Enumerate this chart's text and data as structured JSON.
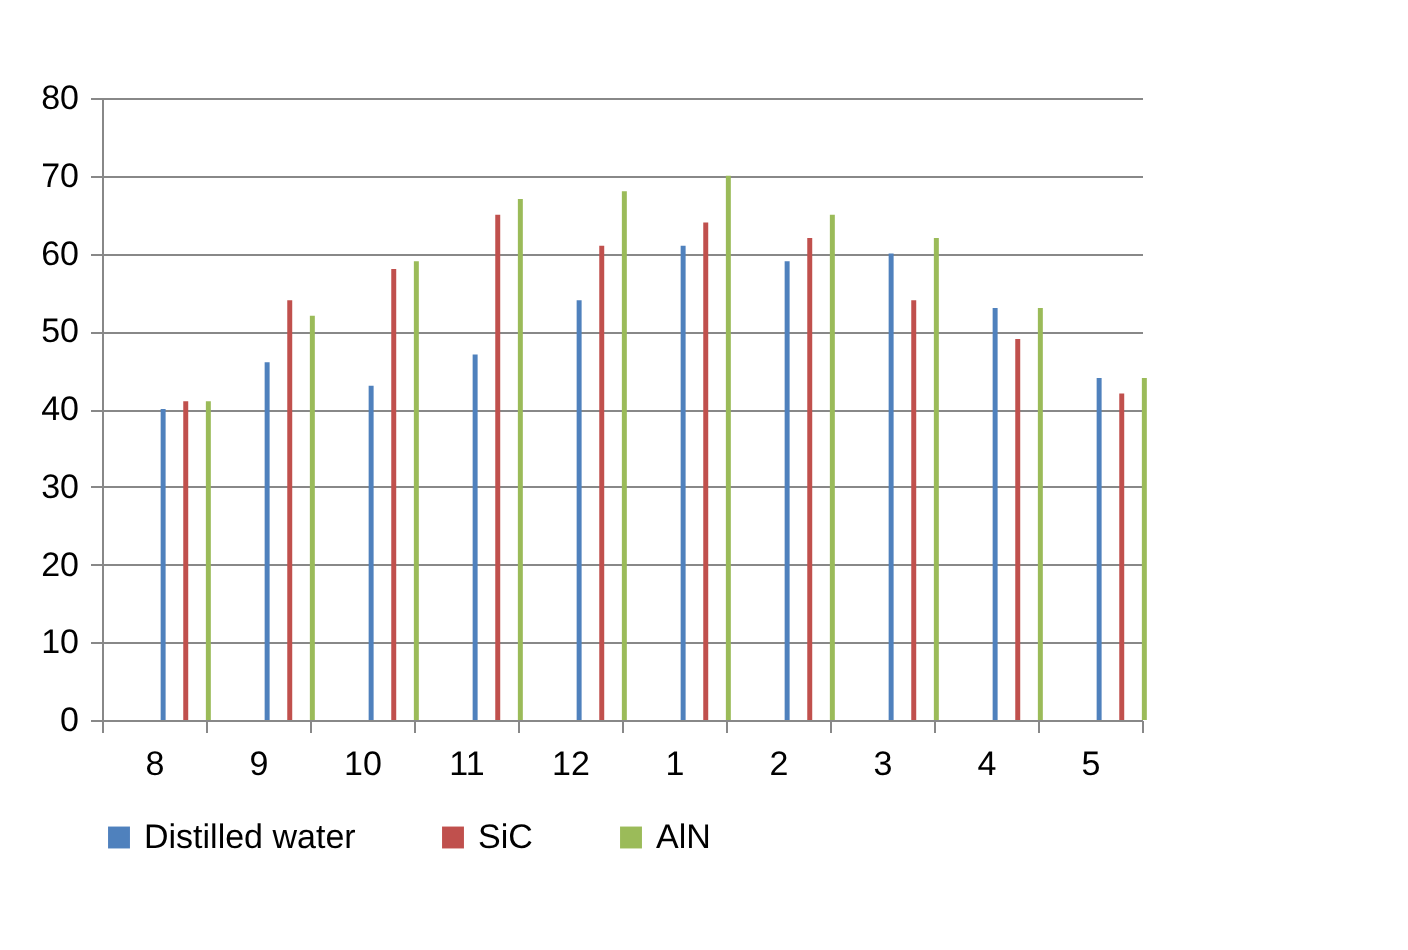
{
  "chart_data": {
    "type": "bar",
    "categories": [
      "8",
      "9",
      "10",
      "11",
      "12",
      "1",
      "2",
      "3",
      "4",
      "5"
    ],
    "series": [
      {
        "name": "Distilled water",
        "color": "#4f81bd",
        "values": [
          40,
          46,
          43,
          47,
          54,
          61,
          59,
          60,
          53,
          44
        ]
      },
      {
        "name": "SiC",
        "color": "#c0504d",
        "values": [
          41,
          54,
          58,
          65,
          61,
          64,
          62,
          54,
          49,
          42
        ]
      },
      {
        "name": "AlN",
        "color": "#9bbb59",
        "values": [
          41,
          52,
          59,
          67,
          68,
          70,
          65,
          62,
          53,
          44
        ]
      }
    ],
    "ylim": [
      0,
      80
    ],
    "yticks": [
      0,
      10,
      20,
      30,
      40,
      50,
      60,
      70,
      80
    ],
    "grid": "y",
    "legend": "bottom"
  }
}
